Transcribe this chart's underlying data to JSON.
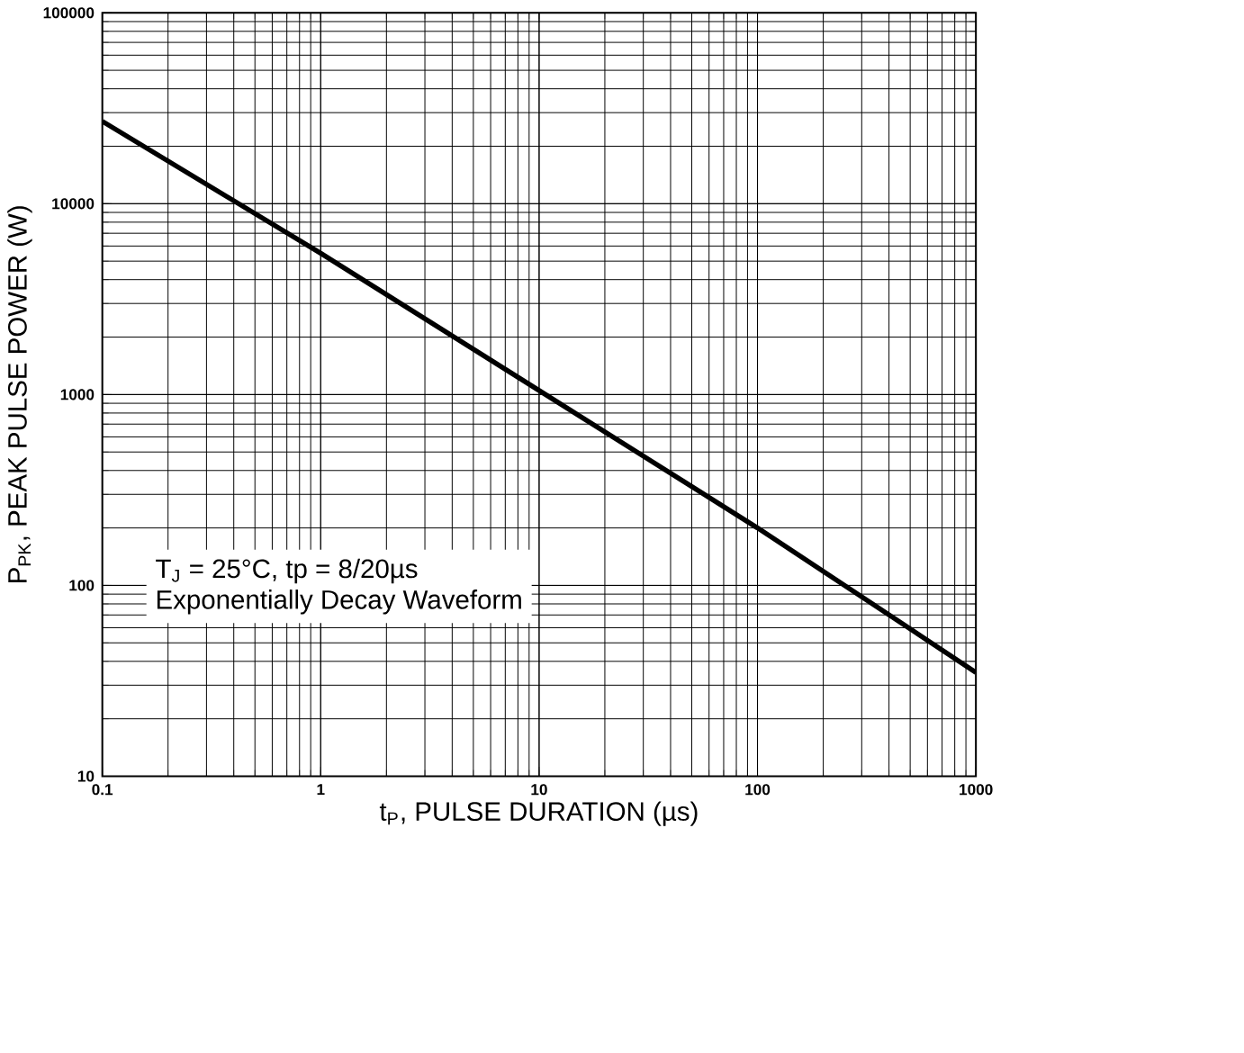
{
  "chart_data": {
    "type": "line",
    "xlabel": "t$_{P}$, PULSE DURATION (µs)",
    "ylabel": "P$_{PK}$, PEAK PULSE POWER (W)",
    "x": [
      0.1,
      1,
      10,
      100,
      1000
    ],
    "series": [
      {
        "color": "#000000",
        "values": [
          27000,
          5500,
          1050,
          200,
          35
        ]
      }
    ],
    "log": "xy",
    "xlim": [
      0.1,
      1000
    ],
    "ylim": [
      10,
      100000
    ],
    "xticks": [
      0.1,
      1,
      10,
      100,
      1000
    ],
    "yticks": [
      10,
      100,
      1000,
      10000,
      100000
    ],
    "grid": true,
    "annotations": [
      "T$_{J}$ = 25°C, tp = 8/20µs",
      "Exponentially Decay Waveform"
    ]
  }
}
